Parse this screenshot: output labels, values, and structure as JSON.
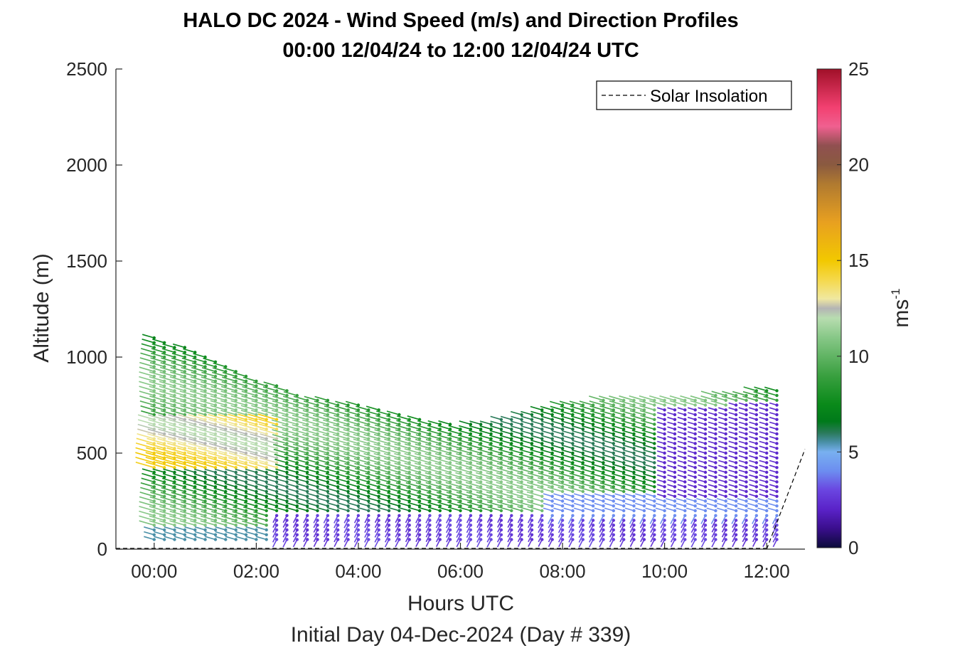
{
  "chart_data": {
    "type": "wind_barbs",
    "title_lines": [
      "HALO DC 2024 - Wind Speed (m/s) and Direction Profiles",
      "00:00 12/04/24 to 12:00 12/04/24  UTC"
    ],
    "xlabel": "Hours UTC",
    "ylabel": "Altitude (m)",
    "subtitle": "Initial Day 04-Dec-2024 (Day # 339)",
    "xlim": [
      -0.75,
      12.75
    ],
    "ylim": [
      0,
      2500
    ],
    "x_ticks": [
      0,
      2,
      4,
      6,
      8,
      10,
      12
    ],
    "x_tick_labels": [
      "00:00",
      "02:00",
      "04:00",
      "06:00",
      "08:00",
      "10:00",
      "12:00"
    ],
    "y_ticks": [
      0,
      500,
      1000,
      1500,
      2000,
      2500
    ],
    "y_tick_labels": [
      "0",
      "500",
      "1000",
      "1500",
      "2000",
      "2500"
    ],
    "legend": {
      "label": "Solar Insolation",
      "style": "dashed",
      "location": "top-right"
    },
    "colorbar": {
      "label": "ms",
      "label_superscript": "-1",
      "limits": [
        0,
        25
      ],
      "ticks": [
        0,
        5,
        10,
        15,
        20,
        25
      ],
      "tick_labels": [
        "0",
        "5",
        "10",
        "15",
        "20",
        "25"
      ],
      "colormap": [
        [
          0,
          "#0b0b3a"
        ],
        [
          1,
          "#3a0e8c"
        ],
        [
          2,
          "#5a22c8"
        ],
        [
          3,
          "#6a45e0"
        ],
        [
          4,
          "#6c8df0"
        ],
        [
          5,
          "#78b0f0"
        ],
        [
          5.5,
          "#4a90a8"
        ],
        [
          6,
          "#2a7a5a"
        ],
        [
          6.6,
          "#007a1a"
        ],
        [
          7.5,
          "#0a8a1a"
        ],
        [
          9,
          "#3aa040"
        ],
        [
          11,
          "#88c888"
        ],
        [
          12,
          "#b8ddb0"
        ],
        [
          12.5,
          "#b4b4b4"
        ],
        [
          13,
          "#f0e8a0"
        ],
        [
          14,
          "#f5d84a"
        ],
        [
          15,
          "#f2c800"
        ],
        [
          17,
          "#e8a020"
        ],
        [
          19,
          "#b07a30"
        ],
        [
          20,
          "#8a5a40"
        ],
        [
          21,
          "#905050"
        ],
        [
          22,
          "#f06090"
        ],
        [
          23,
          "#f24070"
        ],
        [
          25,
          "#a01028"
        ]
      ]
    },
    "profiles": {
      "time_start": 0.0,
      "time_step": 0.2,
      "time_count": 62,
      "altitude_step": 25,
      "top_altitude_series": {
        "times": [
          0,
          1,
          2,
          3,
          4,
          5,
          6,
          7,
          8,
          9,
          10,
          11,
          11.8
        ],
        "altitudes": [
          1110,
          1010,
          890,
          790,
          760,
          690,
          640,
          690,
          760,
          780,
          790,
          800,
          830
        ]
      }
    },
    "insolation_series": {
      "x": [
        12.0,
        12.75
      ],
      "y": [
        0,
        520
      ]
    }
  }
}
